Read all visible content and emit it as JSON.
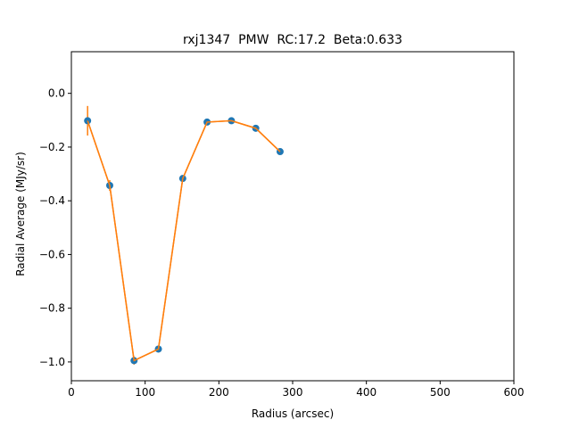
{
  "chart_data": {
    "type": "scatter",
    "title": "rxj1347  PMW  RC:17.2  Beta:0.633",
    "xlabel": "Radius (arcsec)",
    "ylabel": "Radial Average (MJy/sr)",
    "xlim": [
      0,
      600
    ],
    "ylim": [
      -1.07,
      0.155
    ],
    "xticks": [
      "0",
      "100",
      "200",
      "300",
      "400",
      "500",
      "600"
    ],
    "yticks": [
      "0.0",
      "−0.2",
      "−0.4",
      "−0.6",
      "−0.8",
      "−1.0"
    ],
    "grid": false,
    "series": [
      {
        "marker_color": "#1f77b4",
        "line_color": "#ff7f0e",
        "x": [
          22,
          52,
          85,
          118,
          151,
          184,
          217,
          250,
          283
        ],
        "y": [
          -0.102,
          -0.343,
          -0.995,
          -0.952,
          -0.317,
          -0.107,
          -0.102,
          -0.13,
          -0.217
        ],
        "yerr": [
          0.055,
          0.02,
          0.015,
          0.012,
          0.012,
          0.01,
          0.01,
          0.01,
          0.01
        ]
      }
    ]
  }
}
